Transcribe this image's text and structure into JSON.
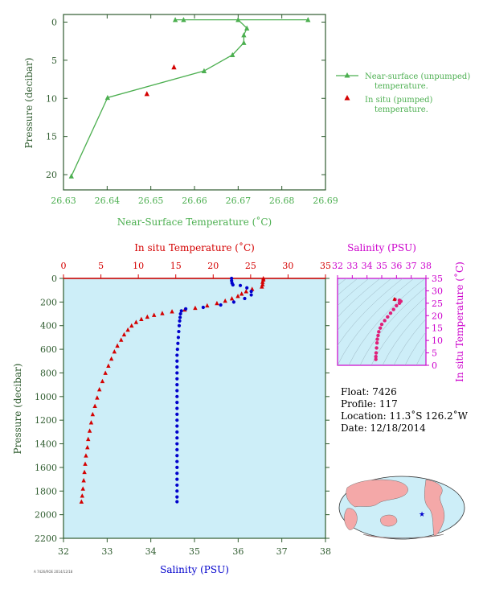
{
  "chart_data": [
    {
      "type": "line",
      "xlabel": "Near-Surface Temperature (˚C)",
      "ylabel": "Pressure (decibar)",
      "xlim": [
        26.63,
        26.69
      ],
      "ylim": [
        22,
        -1
      ],
      "x_ticks": [
        "26.63",
        "26.64",
        "26.65",
        "26.66",
        "26.67",
        "26.68",
        "26.69"
      ],
      "y_ticks": [
        "0",
        "5",
        "10",
        "15",
        "20"
      ],
      "legend_position": "right",
      "series": [
        {
          "name": "Near-surface (unpumped) temperature.",
          "marker": "triangle",
          "color": "#4caf50",
          "points": [
            [
              26.6556,
              -0.3
            ],
            [
              26.6575,
              -0.3
            ],
            [
              26.686,
              -0.3
            ],
            [
              26.67,
              -0.3
            ],
            [
              26.672,
              0.8
            ],
            [
              26.6713,
              1.7
            ],
            [
              26.6713,
              2.7
            ],
            [
              26.6687,
              4.3
            ],
            [
              26.6622,
              6.4
            ],
            [
              26.6401,
              9.9
            ],
            [
              26.6318,
              20.2
            ]
          ]
        },
        {
          "name": "In situ (pumped) temperature.",
          "marker": "triangle",
          "color": "#d40000",
          "points": [
            [
              26.6553,
              5.9
            ],
            [
              26.6491,
              9.4
            ]
          ]
        }
      ]
    },
    {
      "type": "scatter",
      "top_axis_label": "In situ Temperature (˚C)",
      "bottom_axis_label": "Salinity (PSU)",
      "ylabel": "Pressure (decibar)",
      "temperature_range": [
        0,
        35
      ],
      "salinity_range": [
        32,
        38
      ],
      "ylim": [
        2200,
        0
      ],
      "temperature_ticks": [
        "0",
        "5",
        "10",
        "15",
        "20",
        "25",
        "30",
        "35"
      ],
      "salinity_ticks": [
        "32",
        "33",
        "34",
        "35",
        "36",
        "37",
        "38"
      ],
      "pressure_ticks": [
        "0",
        "200",
        "400",
        "600",
        "800",
        "1000",
        "1200",
        "1400",
        "1600",
        "1800",
        "2000",
        "2200"
      ],
      "temperature_series": {
        "color": "#d40000",
        "points": [
          [
            26.7,
            0
          ],
          [
            26.7,
            10
          ],
          [
            26.6,
            30
          ],
          [
            26.6,
            50
          ],
          [
            26.5,
            70
          ],
          [
            25.2,
            90
          ],
          [
            24.4,
            110
          ],
          [
            23.8,
            130
          ],
          [
            23.3,
            150
          ],
          [
            22.5,
            170
          ],
          [
            21.6,
            190
          ],
          [
            20.5,
            210
          ],
          [
            19.2,
            230
          ],
          [
            17.6,
            250
          ],
          [
            16.2,
            265
          ],
          [
            14.5,
            280
          ],
          [
            13.2,
            295
          ],
          [
            12.1,
            310
          ],
          [
            11.2,
            325
          ],
          [
            10.4,
            345
          ],
          [
            9.7,
            370
          ],
          [
            9.1,
            400
          ],
          [
            8.6,
            435
          ],
          [
            8.1,
            475
          ],
          [
            7.7,
            520
          ],
          [
            7.2,
            570
          ],
          [
            6.8,
            620
          ],
          [
            6.4,
            680
          ],
          [
            6.0,
            740
          ],
          [
            5.6,
            800
          ],
          [
            5.2,
            870
          ],
          [
            4.8,
            940
          ],
          [
            4.5,
            1010
          ],
          [
            4.2,
            1080
          ],
          [
            3.9,
            1150
          ],
          [
            3.7,
            1220
          ],
          [
            3.5,
            1290
          ],
          [
            3.3,
            1360
          ],
          [
            3.2,
            1430
          ],
          [
            3.0,
            1500
          ],
          [
            2.9,
            1570
          ],
          [
            2.8,
            1640
          ],
          [
            2.7,
            1710
          ],
          [
            2.6,
            1780
          ],
          [
            2.5,
            1840
          ],
          [
            2.4,
            1890
          ]
        ]
      },
      "salinity_series": {
        "color": "#0000cc",
        "points": [
          [
            35.85,
            0
          ],
          [
            35.85,
            20
          ],
          [
            35.86,
            40
          ],
          [
            35.88,
            55
          ],
          [
            36.05,
            60
          ],
          [
            36.2,
            80
          ],
          [
            36.3,
            110
          ],
          [
            36.3,
            140
          ],
          [
            36.15,
            170
          ],
          [
            35.9,
            200
          ],
          [
            35.6,
            225
          ],
          [
            35.2,
            245
          ],
          [
            34.8,
            258
          ],
          [
            34.7,
            275
          ],
          [
            34.68,
            300
          ],
          [
            34.67,
            330
          ],
          [
            34.66,
            360
          ],
          [
            34.65,
            400
          ],
          [
            34.64,
            450
          ],
          [
            34.63,
            500
          ],
          [
            34.62,
            550
          ],
          [
            34.61,
            600
          ],
          [
            34.6,
            650
          ],
          [
            34.6,
            700
          ],
          [
            34.6,
            750
          ],
          [
            34.6,
            800
          ],
          [
            34.6,
            850
          ],
          [
            34.6,
            900
          ],
          [
            34.6,
            950
          ],
          [
            34.6,
            1000
          ],
          [
            34.6,
            1050
          ],
          [
            34.6,
            1100
          ],
          [
            34.6,
            1150
          ],
          [
            34.6,
            1200
          ],
          [
            34.6,
            1250
          ],
          [
            34.6,
            1300
          ],
          [
            34.6,
            1350
          ],
          [
            34.6,
            1400
          ],
          [
            34.6,
            1450
          ],
          [
            34.6,
            1500
          ],
          [
            34.6,
            1550
          ],
          [
            34.6,
            1600
          ],
          [
            34.6,
            1650
          ],
          [
            34.6,
            1700
          ],
          [
            34.6,
            1750
          ],
          [
            34.6,
            1800
          ],
          [
            34.6,
            1850
          ],
          [
            34.6,
            1890
          ]
        ]
      }
    },
    {
      "type": "scatter",
      "title": "Salinity (PSU)",
      "xlabel": "",
      "ylabel": "In situ Temperature (˚C)",
      "xlim": [
        32,
        38
      ],
      "ylim": [
        0,
        35
      ],
      "x_ticks": [
        "32",
        "33",
        "34",
        "35",
        "36",
        "37",
        "38"
      ],
      "y_ticks": [
        "0",
        "5",
        "10",
        "15",
        "20",
        "25",
        "30",
        "35"
      ],
      "color": "#e0207a",
      "points": [
        [
          34.6,
          2.4
        ],
        [
          34.6,
          3.5
        ],
        [
          34.62,
          5.0
        ],
        [
          34.65,
          7.0
        ],
        [
          34.68,
          9.0
        ],
        [
          34.7,
          10.5
        ],
        [
          34.75,
          12.0
        ],
        [
          34.8,
          13.5
        ],
        [
          34.9,
          15.0
        ],
        [
          35.0,
          16.5
        ],
        [
          35.2,
          18.0
        ],
        [
          35.4,
          19.5
        ],
        [
          35.6,
          21.0
        ],
        [
          35.8,
          22.5
        ],
        [
          36.0,
          24.0
        ],
        [
          36.2,
          25.0
        ],
        [
          36.3,
          25.8
        ],
        [
          36.2,
          26.2
        ],
        [
          35.9,
          26.5
        ],
        [
          35.86,
          26.7
        ]
      ]
    }
  ],
  "info": {
    "float": "Float:  7426",
    "profile": "Profile:  117",
    "location": "Location:  11.3˚S  126.2˚W",
    "date": "Date:  12/18/2014"
  },
  "footer": "A 7426/ROE 2014/12/18",
  "colors": {
    "axis_green": "#2e5b2e",
    "line_green": "#4caf50",
    "red": "#d40000",
    "blue": "#0000cc",
    "magenta": "#cc00cc",
    "plot_bg": "#cdeef8"
  }
}
